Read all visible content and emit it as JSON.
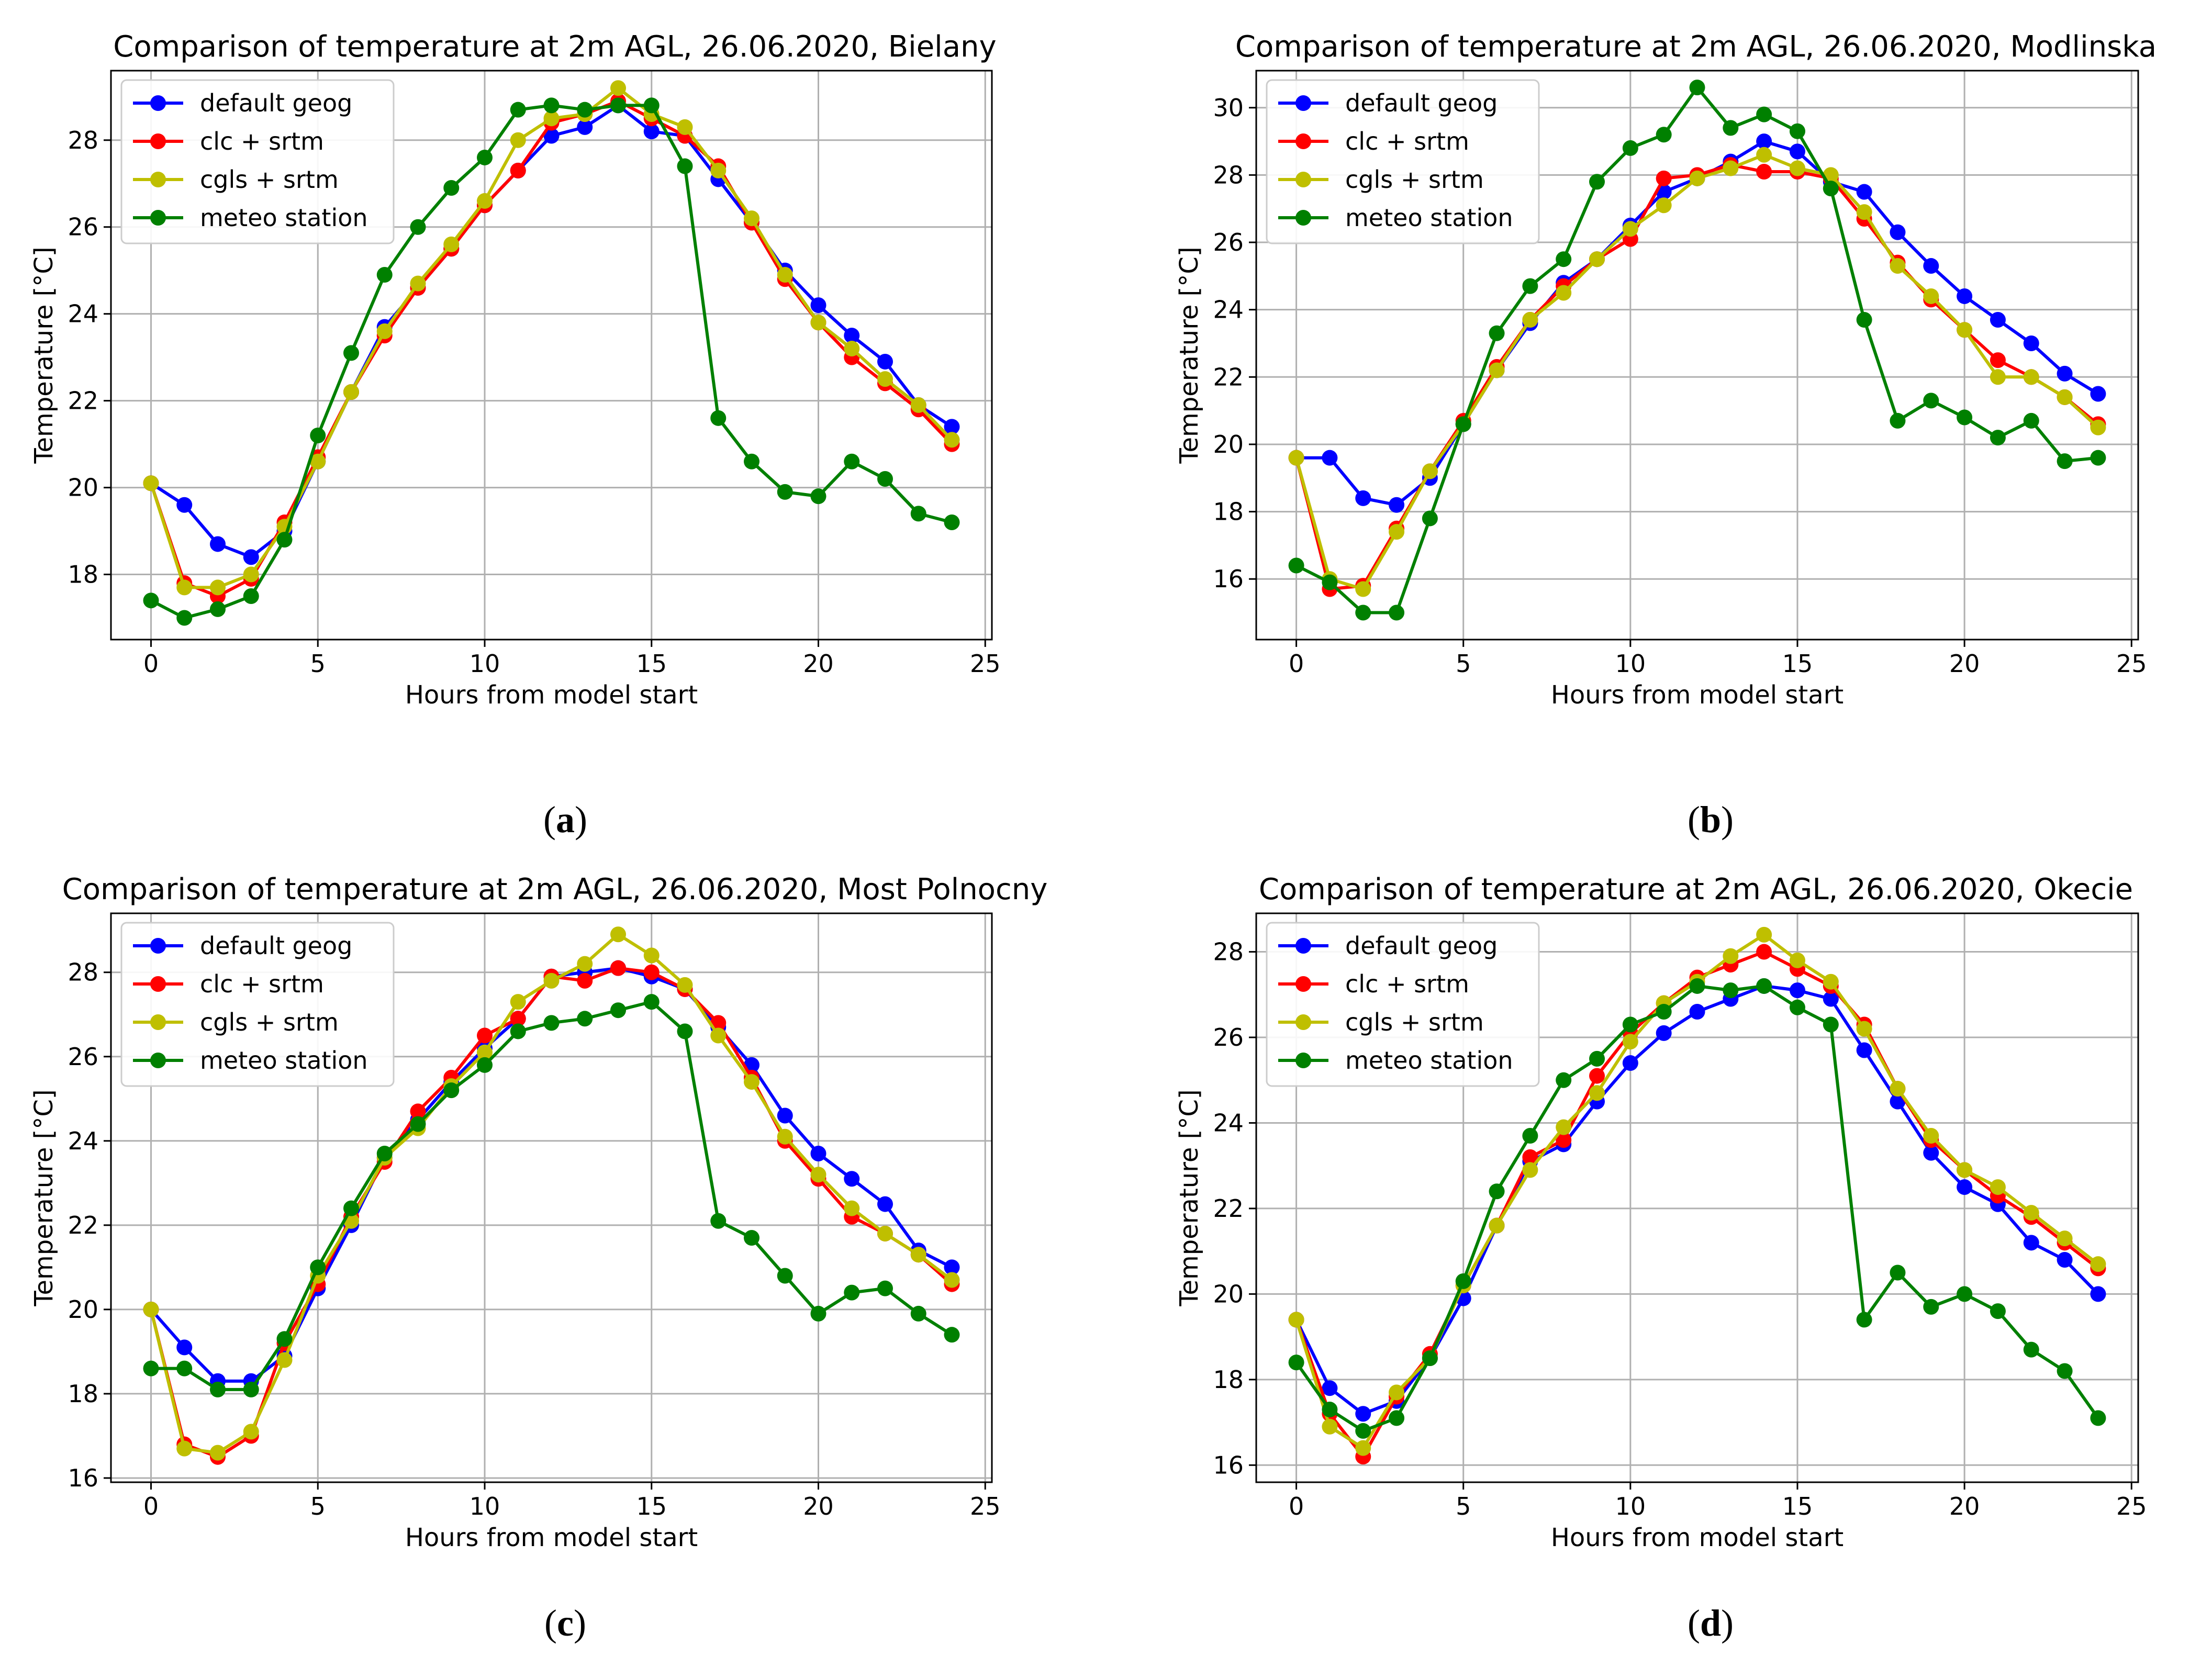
{
  "figure": {
    "captions": [
      {
        "open": "(",
        "letter": "a",
        "close": ")"
      },
      {
        "open": "(",
        "letter": "b",
        "close": ")"
      },
      {
        "open": "(",
        "letter": "c",
        "close": ")"
      },
      {
        "open": "(",
        "letter": "d",
        "close": ")"
      }
    ]
  },
  "colors": {
    "default_geog": "#0000ff",
    "clc_srtm": "#ff0000",
    "cgls_srtm": "#bfbf00",
    "meteo_station": "#008000",
    "grid": "#b0b0b0",
    "axis": "#000000"
  },
  "chart_data": [
    {
      "type": "line",
      "title": "Comparison of temperature at 2m AGL, 26.06.2020, Bielany",
      "xlabel": "Hours from model start",
      "ylabel": "Temperature [°C]",
      "xlim": [
        -1.2,
        25.2
      ],
      "ylim": [
        16.5,
        29.6
      ],
      "xticks": [
        0,
        5,
        10,
        15,
        20,
        25
      ],
      "xtick_labels": [
        "0",
        "5",
        "10",
        "15",
        "20",
        "25"
      ],
      "yticks": [
        18,
        20,
        22,
        24,
        26,
        28
      ],
      "ytick_labels": [
        "18",
        "20",
        "22",
        "24",
        "26",
        "28"
      ],
      "grid": true,
      "legend_position": "top-left",
      "x": [
        0,
        1,
        2,
        3,
        4,
        5,
        6,
        7,
        8,
        9,
        10,
        11,
        12,
        13,
        14,
        15,
        16,
        17,
        18,
        19,
        20,
        21,
        22,
        23,
        24
      ],
      "series": [
        {
          "name": "default geog",
          "color_key": "default_geog",
          "values": [
            20.1,
            19.6,
            18.7,
            18.4,
            19.0,
            20.6,
            22.2,
            23.7,
            24.6,
            25.5,
            26.5,
            27.3,
            28.1,
            28.3,
            28.8,
            28.2,
            28.1,
            27.1,
            26.1,
            25.0,
            24.2,
            23.5,
            22.9,
            21.9,
            21.4
          ]
        },
        {
          "name": "clc + srtm",
          "color_key": "clc_srtm",
          "values": [
            20.1,
            17.8,
            17.5,
            17.9,
            19.2,
            20.7,
            22.2,
            23.5,
            24.6,
            25.5,
            26.5,
            27.3,
            28.4,
            28.6,
            28.9,
            28.5,
            28.1,
            27.4,
            26.1,
            24.8,
            23.8,
            23.0,
            22.4,
            21.8,
            21.0
          ]
        },
        {
          "name": "cgls + srtm",
          "color_key": "cgls_srtm",
          "values": [
            20.1,
            17.7,
            17.7,
            18.0,
            19.1,
            20.6,
            22.2,
            23.6,
            24.7,
            25.6,
            26.6,
            28.0,
            28.5,
            28.6,
            29.2,
            28.6,
            28.3,
            27.3,
            26.2,
            24.9,
            23.8,
            23.2,
            22.5,
            21.9,
            21.1
          ]
        },
        {
          "name": "meteo station",
          "color_key": "meteo_station",
          "values": [
            17.4,
            17.0,
            17.2,
            17.5,
            18.8,
            21.2,
            23.1,
            24.9,
            26.0,
            26.9,
            27.6,
            28.7,
            28.8,
            28.7,
            28.8,
            28.8,
            27.4,
            21.6,
            20.6,
            19.9,
            19.8,
            20.6,
            20.2,
            19.4,
            19.2
          ]
        }
      ]
    },
    {
      "type": "line",
      "title": "Comparison of temperature at 2m AGL, 26.06.2020, Modlinska",
      "xlabel": "Hours from model start",
      "ylabel": "Temperature [°C]",
      "xlim": [
        -1.2,
        25.2
      ],
      "ylim": [
        14.2,
        31.1
      ],
      "xticks": [
        0,
        5,
        10,
        15,
        20,
        25
      ],
      "xtick_labels": [
        "0",
        "5",
        "10",
        "15",
        "20",
        "25"
      ],
      "yticks": [
        16,
        18,
        20,
        22,
        24,
        26,
        28,
        30
      ],
      "ytick_labels": [
        "16",
        "18",
        "20",
        "22",
        "24",
        "26",
        "28",
        "30"
      ],
      "grid": true,
      "legend_position": "top-left",
      "x": [
        0,
        1,
        2,
        3,
        4,
        5,
        6,
        7,
        8,
        9,
        10,
        11,
        12,
        13,
        14,
        15,
        16,
        17,
        18,
        19,
        20,
        21,
        22,
        23,
        24
      ],
      "series": [
        {
          "name": "default geog",
          "color_key": "default_geog",
          "values": [
            19.6,
            19.6,
            18.4,
            18.2,
            19.0,
            20.6,
            22.2,
            23.6,
            24.8,
            25.5,
            26.5,
            27.5,
            27.9,
            28.4,
            29.0,
            28.7,
            27.8,
            27.5,
            26.3,
            25.3,
            24.4,
            23.7,
            23.0,
            22.1,
            21.5
          ]
        },
        {
          "name": "clc + srtm",
          "color_key": "clc_srtm",
          "values": [
            19.6,
            15.7,
            15.8,
            17.5,
            19.2,
            20.7,
            22.3,
            23.7,
            24.7,
            25.5,
            26.1,
            27.9,
            28.0,
            28.3,
            28.1,
            28.1,
            27.9,
            26.7,
            25.4,
            24.3,
            23.4,
            22.5,
            22.0,
            21.4,
            20.6
          ]
        },
        {
          "name": "cgls + srtm",
          "color_key": "cgls_srtm",
          "values": [
            19.6,
            16.0,
            15.7,
            17.4,
            19.2,
            20.6,
            22.2,
            23.7,
            24.5,
            25.5,
            26.4,
            27.1,
            27.9,
            28.2,
            28.6,
            28.2,
            28.0,
            26.9,
            25.3,
            24.4,
            23.4,
            22.0,
            22.0,
            21.4,
            20.5
          ]
        },
        {
          "name": "meteo station",
          "color_key": "meteo_station",
          "values": [
            16.4,
            15.9,
            15.0,
            15.0,
            17.8,
            20.6,
            23.3,
            24.7,
            25.5,
            27.8,
            28.8,
            29.2,
            30.6,
            29.4,
            29.8,
            29.3,
            27.6,
            23.7,
            20.7,
            21.3,
            20.8,
            20.2,
            20.7,
            19.5,
            19.6
          ]
        }
      ]
    },
    {
      "type": "line",
      "title": "Comparison of temperature at 2m AGL, 26.06.2020, Most Polnocny",
      "xlabel": "Hours from model start",
      "ylabel": "Temperature [°C]",
      "xlim": [
        -1.2,
        25.2
      ],
      "ylim": [
        15.9,
        29.4
      ],
      "xticks": [
        0,
        5,
        10,
        15,
        20,
        25
      ],
      "xtick_labels": [
        "0",
        "5",
        "10",
        "15",
        "20",
        "25"
      ],
      "yticks": [
        16,
        18,
        20,
        22,
        24,
        26,
        28
      ],
      "ytick_labels": [
        "16",
        "18",
        "20",
        "22",
        "24",
        "26",
        "28"
      ],
      "grid": true,
      "legend_position": "top-left",
      "x": [
        0,
        1,
        2,
        3,
        4,
        5,
        6,
        7,
        8,
        9,
        10,
        11,
        12,
        13,
        14,
        15,
        16,
        17,
        18,
        19,
        20,
        21,
        22,
        23,
        24
      ],
      "series": [
        {
          "name": "default geog",
          "color_key": "default_geog",
          "values": [
            20.0,
            19.1,
            18.3,
            18.3,
            18.9,
            20.5,
            22.0,
            23.6,
            24.5,
            25.4,
            26.2,
            26.9,
            27.9,
            28.0,
            28.1,
            27.9,
            27.6,
            26.7,
            25.8,
            24.6,
            23.7,
            23.1,
            22.5,
            21.4,
            21.0
          ]
        },
        {
          "name": "clc + srtm",
          "color_key": "clc_srtm",
          "values": [
            20.0,
            16.8,
            16.5,
            17.0,
            19.2,
            20.6,
            22.2,
            23.5,
            24.7,
            25.5,
            26.5,
            26.9,
            27.9,
            27.8,
            28.1,
            28.0,
            27.6,
            26.8,
            25.5,
            24.0,
            23.1,
            22.2,
            21.8,
            21.3,
            20.6
          ]
        },
        {
          "name": "cgls + srtm",
          "color_key": "cgls_srtm",
          "values": [
            20.0,
            16.7,
            16.6,
            17.1,
            18.8,
            20.8,
            22.1,
            23.6,
            24.3,
            25.3,
            26.1,
            27.3,
            27.8,
            28.2,
            28.9,
            28.4,
            27.7,
            26.5,
            25.4,
            24.1,
            23.2,
            22.4,
            21.8,
            21.3,
            20.7
          ]
        },
        {
          "name": "meteo station",
          "color_key": "meteo_station",
          "values": [
            18.6,
            18.6,
            18.1,
            18.1,
            19.3,
            21.0,
            22.4,
            23.7,
            24.4,
            25.2,
            25.8,
            26.6,
            26.8,
            26.9,
            27.1,
            27.3,
            26.6,
            22.1,
            21.7,
            20.8,
            19.9,
            20.4,
            20.5,
            19.9,
            19.4
          ]
        }
      ]
    },
    {
      "type": "line",
      "title": "Comparison of temperature at 2m AGL, 26.06.2020, Okecie",
      "xlabel": "Hours from model start",
      "ylabel": "Temperature [°C]",
      "xlim": [
        -1.2,
        25.2
      ],
      "ylim": [
        15.6,
        28.9
      ],
      "xticks": [
        0,
        5,
        10,
        15,
        20,
        25
      ],
      "xtick_labels": [
        "0",
        "5",
        "10",
        "15",
        "20",
        "25"
      ],
      "yticks": [
        16,
        18,
        20,
        22,
        24,
        26,
        28
      ],
      "ytick_labels": [
        "16",
        "18",
        "20",
        "22",
        "24",
        "26",
        "28"
      ],
      "grid": true,
      "legend_position": "top-left",
      "x": [
        0,
        1,
        2,
        3,
        4,
        5,
        6,
        7,
        8,
        9,
        10,
        11,
        12,
        13,
        14,
        15,
        16,
        17,
        18,
        19,
        20,
        21,
        22,
        23,
        24
      ],
      "series": [
        {
          "name": "default geog",
          "color_key": "default_geog",
          "values": [
            19.4,
            17.8,
            17.2,
            17.5,
            18.5,
            19.9,
            21.6,
            23.1,
            23.5,
            24.5,
            25.4,
            26.1,
            26.6,
            26.9,
            27.2,
            27.1,
            26.9,
            25.7,
            24.5,
            23.3,
            22.5,
            22.1,
            21.2,
            20.8,
            20.0
          ]
        },
        {
          "name": "clc + srtm",
          "color_key": "clc_srtm",
          "values": [
            19.4,
            17.2,
            16.2,
            17.6,
            18.6,
            20.2,
            21.6,
            23.2,
            23.6,
            25.1,
            26.1,
            26.8,
            27.4,
            27.7,
            28.0,
            27.6,
            27.2,
            26.3,
            24.8,
            23.6,
            22.9,
            22.3,
            21.8,
            21.2,
            20.6
          ]
        },
        {
          "name": "cgls + srtm",
          "color_key": "cgls_srtm",
          "values": [
            19.4,
            16.9,
            16.4,
            17.7,
            18.5,
            20.2,
            21.6,
            22.9,
            23.9,
            24.7,
            25.9,
            26.8,
            27.3,
            27.9,
            28.4,
            27.8,
            27.3,
            26.2,
            24.8,
            23.7,
            22.9,
            22.5,
            21.9,
            21.3,
            20.7
          ]
        },
        {
          "name": "meteo station",
          "color_key": "meteo_station",
          "values": [
            18.4,
            17.3,
            16.8,
            17.1,
            18.5,
            20.3,
            22.4,
            23.7,
            25.0,
            25.5,
            26.3,
            26.6,
            27.2,
            27.1,
            27.2,
            26.7,
            26.3,
            19.4,
            20.5,
            19.7,
            20.0,
            19.6,
            18.7,
            18.2,
            17.1
          ]
        }
      ]
    }
  ]
}
